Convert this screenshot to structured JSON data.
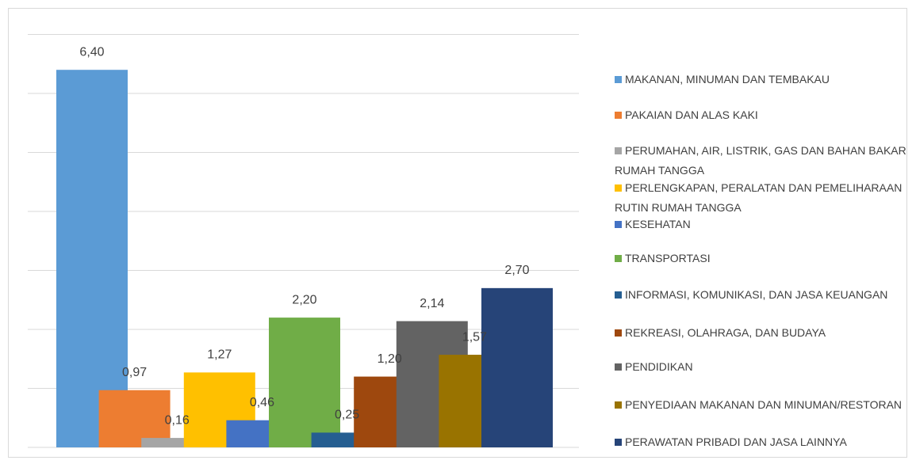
{
  "chart_data": {
    "type": "bar",
    "series": [
      {
        "name": "MAKANAN, MINUMAN DAN TEMBAKAU",
        "color": "#5b9bd5",
        "values": [
          6.4
        ],
        "value_labels": [
          "6,40"
        ]
      },
      {
        "name": "PAKAIAN DAN ALAS KAKI",
        "color": "#ed7d31",
        "values": [
          0.97
        ],
        "value_labels": [
          "0,97"
        ]
      },
      {
        "name": "PERUMAHAN, AIR, LISTRIK, GAS DAN BAHAN BAKAR RUMAH TANGGA",
        "color": "#a5a5a5",
        "values": [
          0.16
        ],
        "value_labels": [
          "0,16"
        ]
      },
      {
        "name": "PERLENGKAPAN, PERALATAN DAN PEMELIHARAAN RUTIN RUMAH TANGGA",
        "color": "#ffc000",
        "values": [
          1.27
        ],
        "value_labels": [
          "1,27"
        ]
      },
      {
        "name": "KESEHATAN",
        "color": "#4472c4",
        "values": [
          0.46
        ],
        "value_labels": [
          "0,46"
        ]
      },
      {
        "name": "TRANSPORTASI",
        "color": "#70ad47",
        "values": [
          2.2
        ],
        "value_labels": [
          "2,20"
        ]
      },
      {
        "name": "INFORMASI, KOMUNIKASI, DAN JASA KEUANGAN",
        "color": "#255e91",
        "values": [
          0.25
        ],
        "value_labels": [
          "0,25"
        ]
      },
      {
        "name": "REKREASI, OLAHRAGA, DAN BUDAYA",
        "color": "#9e480e",
        "values": [
          1.2
        ],
        "value_labels": [
          "1,20"
        ]
      },
      {
        "name": "PENDIDIKAN",
        "color": "#636363",
        "values": [
          2.14
        ],
        "value_labels": [
          "2,14"
        ]
      },
      {
        "name": "PENYEDIAAN MAKANAN DAN MINUMAN/RESTORAN",
        "color": "#997300",
        "values": [
          1.57
        ],
        "value_labels": [
          "1,57"
        ]
      },
      {
        "name": "PERAWATAN PRIBADI DAN JASA LAINNYA",
        "color": "#264478",
        "values": [
          2.7
        ],
        "value_labels": [
          "2,70"
        ]
      }
    ],
    "ylim": [
      0,
      7
    ],
    "yticks": [
      0,
      1,
      2,
      3,
      4,
      5,
      6,
      7
    ],
    "grid": true,
    "legend": "right"
  }
}
